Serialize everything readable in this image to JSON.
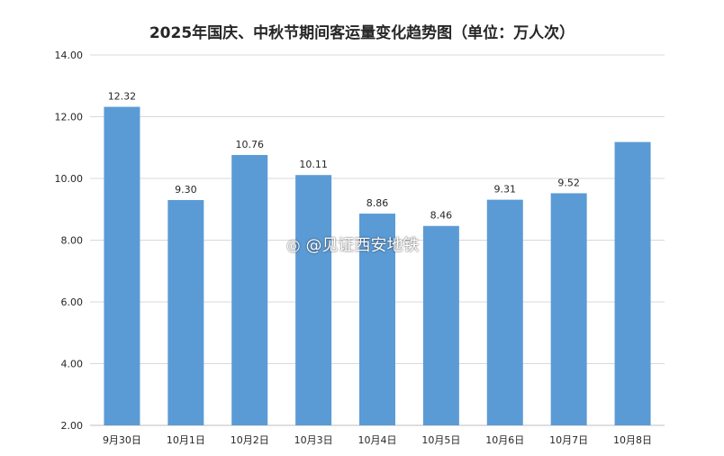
{
  "chart_data": {
    "type": "bar",
    "title": "2025年国庆、中秋节期间客运量变化趋势图（单位：万人次）",
    "categories": [
      "9月30日",
      "10月1日",
      "10月2日",
      "10月3日",
      "10月4日",
      "10月5日",
      "10月6日",
      "10月7日",
      "10月8日"
    ],
    "values": [
      12.32,
      9.3,
      10.76,
      10.11,
      8.86,
      8.46,
      9.31,
      9.52,
      11.18
    ],
    "data_labels": [
      "12.32",
      "9.30",
      "10.76",
      "10.11",
      "8.86",
      "8.46",
      "9.31",
      "9.52",
      ""
    ],
    "ylim": [
      2,
      14
    ],
    "yticks": [
      "2.00",
      "4.00",
      "6.00",
      "8.00",
      "10.00",
      "12.00",
      "14.00"
    ],
    "grid": true,
    "legend": "none",
    "colors": {
      "bar": "#5b9bd5",
      "grid": "#d9d9d9",
      "text": "#262626"
    }
  },
  "watermark": "@见证西安地铁"
}
